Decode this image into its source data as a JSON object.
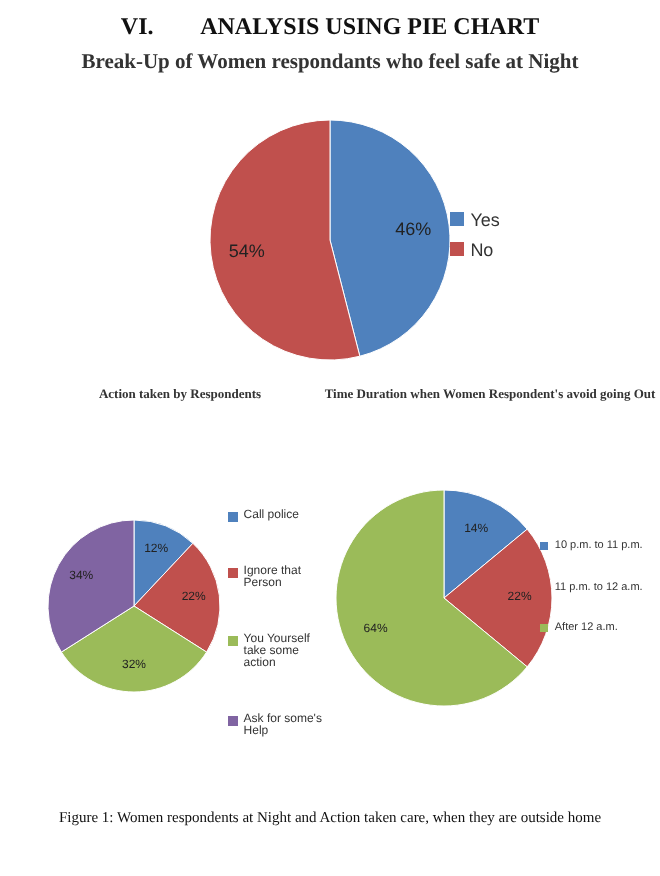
{
  "chart_data": [
    {
      "type": "pie",
      "title": "Break-Up of Women respondants who feel safe at Night",
      "annotations": [
        "VI.        ANALYSIS USING PIE CHART"
      ],
      "categories": [
        "Yes",
        "No"
      ],
      "values": [
        46,
        54
      ],
      "colors": [
        "#4f81bd",
        "#c0504d"
      ],
      "value_labels": [
        "46%",
        "54%"
      ],
      "legend": "right"
    },
    {
      "type": "pie",
      "title": "Action taken by Respondents",
      "categories": [
        "Call police",
        "Ignore that Person",
        "You Yourself take some action",
        "Ask for some's Help"
      ],
      "values": [
        12,
        22,
        32,
        34
      ],
      "colors": [
        "#4f81bd",
        "#c0504d",
        "#9bbb59",
        "#8064a2"
      ],
      "value_labels": [
        "12%",
        "22%",
        "32%",
        "34%"
      ],
      "legend": "right"
    },
    {
      "type": "pie",
      "title": "Time Duration when Women Respondent's avoid going Out",
      "annotations": [
        "Figure 1: Women respondents at Night and Action taken care, when they are outside home"
      ],
      "categories": [
        "10 p.m. to 11 p.m.",
        "11 p.m. to 12 a.m.",
        "After 12 a.m."
      ],
      "values": [
        14,
        22,
        64
      ],
      "colors": [
        "#4f81bd",
        "#c0504d",
        "#9bbb59"
      ],
      "value_labels": [
        "14%",
        "22%",
        "64%"
      ],
      "legend": "right"
    }
  ]
}
